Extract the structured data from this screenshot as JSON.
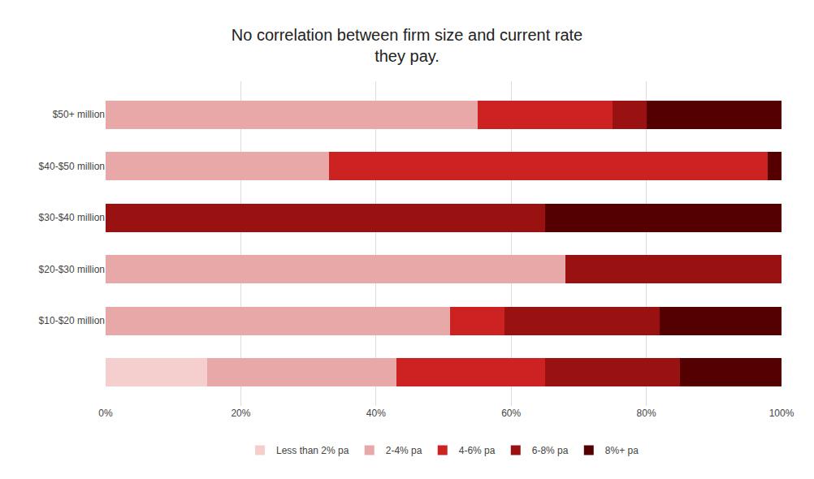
{
  "chart_data": {
    "type": "bar",
    "orientation": "horizontal",
    "stacked": true,
    "title": "No correlation between firm size and current rate\nthey pay.",
    "categories": [
      null,
      "$10-$20 million",
      "$20-$30 million",
      "$30-$40 million",
      "$40-$50 million",
      "$50+ million"
    ],
    "series": [
      {
        "name": "Less than 2% pa",
        "color": "#f5cece",
        "values": [
          15,
          0,
          0,
          0,
          0,
          0
        ]
      },
      {
        "name": "2-4% pa",
        "color": "#e8a8a8",
        "values": [
          28,
          51,
          68,
          0,
          33,
          55
        ]
      },
      {
        "name": "4-6% pa",
        "color": "#cc2222",
        "values": [
          22,
          8,
          0,
          0,
          65,
          20
        ]
      },
      {
        "name": "6-8% pa",
        "color": "#991111",
        "values": [
          20,
          23,
          32,
          65,
          0,
          5
        ]
      },
      {
        "name": "8%+ pa",
        "color": "#550000",
        "values": [
          15,
          18,
          0,
          35,
          2,
          20
        ]
      }
    ],
    "xlim": [
      0,
      100
    ],
    "xticks": [
      {
        "value": 0,
        "label": "0%"
      },
      {
        "value": 20,
        "label": "20%"
      },
      {
        "value": 40,
        "label": "40%"
      },
      {
        "value": 60,
        "label": "60%"
      },
      {
        "value": 80,
        "label": "80%"
      },
      {
        "value": 100,
        "label": "100%"
      }
    ],
    "grid": true,
    "legend": "bottom"
  }
}
